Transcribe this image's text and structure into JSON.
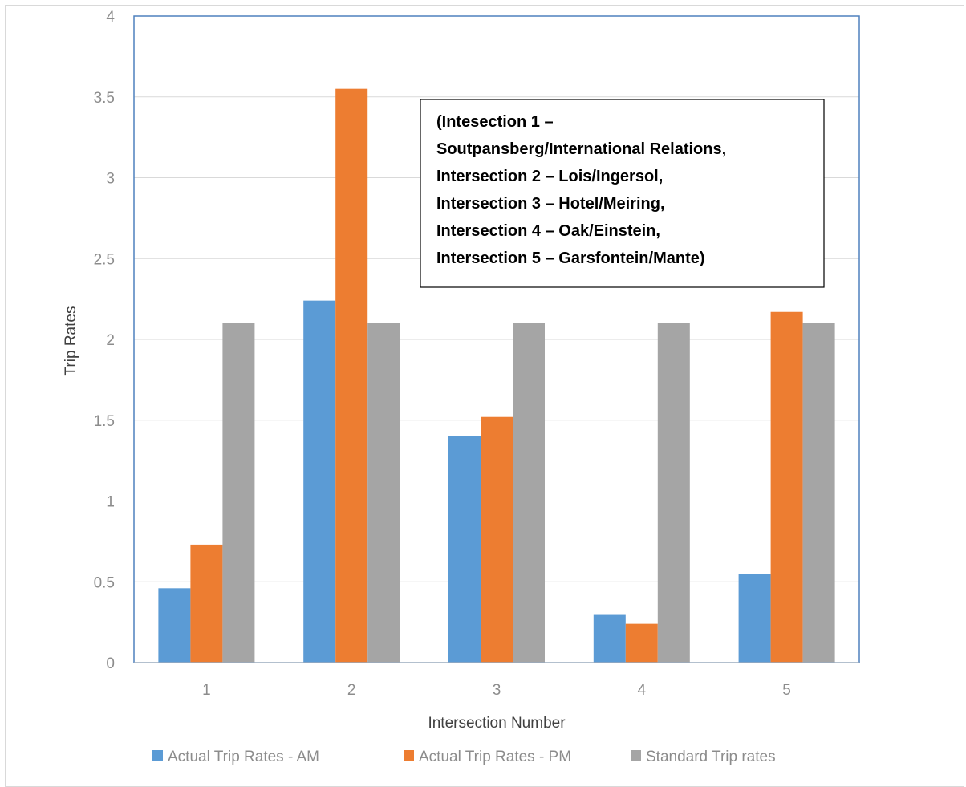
{
  "chart_data": {
    "type": "bar",
    "title": "",
    "xlabel": "Intersection Number",
    "ylabel": "Trip Rates",
    "categories": [
      "1",
      "2",
      "3",
      "4",
      "5"
    ],
    "series": [
      {
        "name": "Actual Trip Rates - AM",
        "color": "#5b9bd5",
        "values": [
          0.46,
          2.24,
          1.4,
          0.3,
          0.55
        ]
      },
      {
        "name": "Actual Trip Rates - PM",
        "color": "#ed7d31",
        "values": [
          0.73,
          3.55,
          1.52,
          0.24,
          2.17
        ]
      },
      {
        "name": "Standard Trip rates",
        "color": "#a5a5a5",
        "values": [
          2.1,
          2.1,
          2.1,
          2.1,
          2.1
        ]
      }
    ],
    "ylim": [
      0,
      4
    ],
    "yticks": [
      "0",
      "0.5",
      "1",
      "1.5",
      "2",
      "2.5",
      "3",
      "3.5",
      "4"
    ],
    "grid": true,
    "legend_position": "bottom",
    "annotation": {
      "lines": [
        "(Intesection 1 –",
        "Soutpansberg/International Relations,",
        "Intersection 2 – Lois/Ingersol,",
        "Intersection 3 – Hotel/Meiring,",
        "Intersection 4 – Oak/Einstein,",
        "Intersection 5 – Garsfontein/Mante)"
      ]
    }
  }
}
